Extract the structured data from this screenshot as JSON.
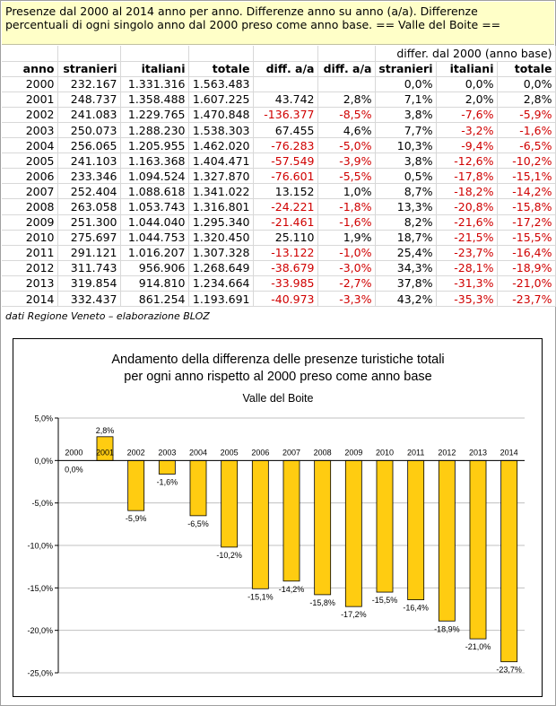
{
  "header": {
    "line1": "Presenze dal 2000 al 2014 anno per anno. Differenze anno su anno (a/a). Differenze",
    "line2": "percentuali di ogni singolo anno dal 2000 preso come anno base. == Valle del Boite =="
  },
  "table": {
    "group_header": "differ. dal 2000 (anno base)",
    "columns": [
      "anno",
      "stranieri",
      "italiani",
      "totale",
      "diff. a/a",
      "diff. a/a",
      "stranieri",
      "italiani",
      "totale"
    ],
    "rows": [
      [
        "2000",
        "232.167",
        "1.331.316",
        "1.563.483",
        "",
        "",
        "0,0%",
        "0,0%",
        "0,0%"
      ],
      [
        "2001",
        "248.737",
        "1.358.488",
        "1.607.225",
        "43.742",
        "2,8%",
        "7,1%",
        "2,0%",
        "2,8%"
      ],
      [
        "2002",
        "241.083",
        "1.229.765",
        "1.470.848",
        "-136.377",
        "-8,5%",
        "3,8%",
        "-7,6%",
        "-5,9%"
      ],
      [
        "2003",
        "250.073",
        "1.288.230",
        "1.538.303",
        "67.455",
        "4,6%",
        "7,7%",
        "-3,2%",
        "-1,6%"
      ],
      [
        "2004",
        "256.065",
        "1.205.955",
        "1.462.020",
        "-76.283",
        "-5,0%",
        "10,3%",
        "-9,4%",
        "-6,5%"
      ],
      [
        "2005",
        "241.103",
        "1.163.368",
        "1.404.471",
        "-57.549",
        "-3,9%",
        "3,8%",
        "-12,6%",
        "-10,2%"
      ],
      [
        "2006",
        "233.346",
        "1.094.524",
        "1.327.870",
        "-76.601",
        "-5,5%",
        "0,5%",
        "-17,8%",
        "-15,1%"
      ],
      [
        "2007",
        "252.404",
        "1.088.618",
        "1.341.022",
        "13.152",
        "1,0%",
        "8,7%",
        "-18,2%",
        "-14,2%"
      ],
      [
        "2008",
        "263.058",
        "1.053.743",
        "1.316.801",
        "-24.221",
        "-1,8%",
        "13,3%",
        "-20,8%",
        "-15,8%"
      ],
      [
        "2009",
        "251.300",
        "1.044.040",
        "1.295.340",
        "-21.461",
        "-1,6%",
        "8,2%",
        "-21,6%",
        "-17,2%"
      ],
      [
        "2010",
        "275.697",
        "1.044.753",
        "1.320.450",
        "25.110",
        "1,9%",
        "18,7%",
        "-21,5%",
        "-15,5%"
      ],
      [
        "2011",
        "291.121",
        "1.016.207",
        "1.307.328",
        "-13.122",
        "-1,0%",
        "25,4%",
        "-23,7%",
        "-16,4%"
      ],
      [
        "2012",
        "311.743",
        "956.906",
        "1.268.649",
        "-38.679",
        "-3,0%",
        "34,3%",
        "-28,1%",
        "-18,9%"
      ],
      [
        "2013",
        "319.854",
        "914.810",
        "1.234.664",
        "-33.985",
        "-2,7%",
        "37,8%",
        "-31,3%",
        "-21,0%"
      ],
      [
        "2014",
        "332.437",
        "861.254",
        "1.193.691",
        "-40.973",
        "-3,3%",
        "43,2%",
        "-35,3%",
        "-23,7%"
      ]
    ],
    "negative_color": "#d00000"
  },
  "source_note": "dati Regione Veneto – elaborazione BLOZ",
  "chart_data": {
    "type": "bar",
    "title_line1": "Andamento della differenza delle presenze turistiche totali",
    "title_line2": "per ogni anno rispetto al 2000 preso come anno base",
    "subtitle": "Valle del Boite",
    "categories": [
      "2000",
      "2001",
      "2002",
      "2003",
      "2004",
      "2005",
      "2006",
      "2007",
      "2008",
      "2009",
      "2010",
      "2011",
      "2012",
      "2013",
      "2014"
    ],
    "values": [
      0.0,
      2.8,
      -5.9,
      -1.6,
      -6.5,
      -10.2,
      -15.1,
      -14.2,
      -15.8,
      -17.2,
      -15.5,
      -16.4,
      -18.9,
      -21.0,
      -23.7
    ],
    "data_labels": [
      "0,0%",
      "2,8%",
      "-5,9%",
      "-1,6%",
      "-6,5%",
      "-10,2%",
      "-15,1%",
      "-14,2%",
      "-15,8%",
      "-17,2%",
      "-15,5%",
      "-16,4%",
      "-18,9%",
      "-21,0%",
      "-23,7%"
    ],
    "y_ticks": [
      5,
      0,
      -5,
      -10,
      -15,
      -20,
      -25
    ],
    "y_tick_labels": [
      "5,0%",
      "0,0%",
      "-5,0%",
      "-10,0%",
      "-15,0%",
      "-20,0%",
      "-25,0%"
    ],
    "ylim": [
      -25,
      5
    ],
    "grid": true,
    "bar_color": "#ffcc11",
    "bar_border": "#000000",
    "grid_color": "#c0c0c0"
  }
}
